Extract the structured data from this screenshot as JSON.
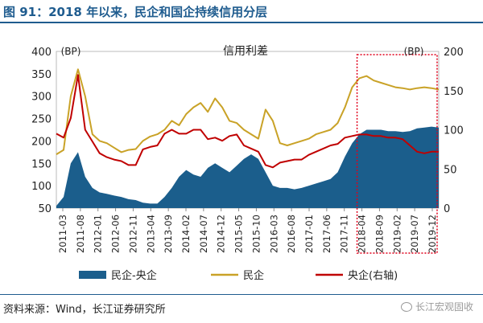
{
  "header": {
    "title": "图 91：2018 年以来，民企和国企持续信用分层"
  },
  "footer": {
    "source": "资料来源：Wind，长江证券研究所",
    "watermark": "长江宏观固收"
  },
  "chart_data": {
    "type": "area+line",
    "title": "信用利差",
    "left_axis": {
      "unit": "(BP)",
      "range": [
        50,
        400
      ],
      "ticks": [
        50,
        100,
        150,
        200,
        250,
        300,
        350,
        400
      ]
    },
    "right_axis": {
      "unit": "(BP)",
      "range": [
        0,
        200
      ],
      "ticks": [
        0,
        50,
        100,
        150,
        200
      ]
    },
    "x_tick_labels": [
      "2011-03",
      "2011-08",
      "2012-01",
      "2012-06",
      "2012-11",
      "2013-04",
      "2013-09",
      "2014-02",
      "2014-07",
      "2014-12",
      "2015-05",
      "2015-10",
      "2016-03",
      "2016-08",
      "2017-01",
      "2017-06",
      "2017-11",
      "2018-04",
      "2018-09",
      "2019-02",
      "2019-07",
      "2019-12"
    ],
    "legend": {
      "position": "bottom"
    },
    "highlight_box": {
      "from": "2018-04",
      "to": "2019-12",
      "color": "#e0001b",
      "style": "dotted"
    },
    "series": [
      {
        "name": "民企-央企",
        "type": "area",
        "axis": "left",
        "color": "#1b5e8c",
        "values": [
          55,
          75,
          150,
          175,
          120,
          95,
          85,
          82,
          78,
          75,
          70,
          68,
          62,
          60,
          60,
          75,
          95,
          120,
          135,
          125,
          120,
          140,
          150,
          140,
          130,
          145,
          160,
          170,
          160,
          130,
          100,
          95,
          95,
          92,
          95,
          100,
          105,
          110,
          115,
          130,
          165,
          195,
          215,
          225,
          225,
          225,
          222,
          222,
          220,
          222,
          228,
          230,
          232,
          230
        ]
      },
      {
        "name": "民企",
        "type": "line",
        "axis": "left",
        "color": "#c9a227",
        "values": [
          170,
          180,
          300,
          360,
          300,
          215,
          200,
          195,
          185,
          175,
          180,
          182,
          200,
          210,
          215,
          225,
          245,
          235,
          260,
          275,
          285,
          265,
          295,
          275,
          245,
          240,
          225,
          215,
          205,
          270,
          245,
          195,
          190,
          195,
          200,
          205,
          215,
          220,
          225,
          240,
          275,
          320,
          340,
          345,
          335,
          330,
          325,
          320,
          318,
          315,
          318,
          320,
          318,
          315
        ]
      },
      {
        "name": "央企(右轴)",
        "type": "line",
        "axis": "right",
        "color": "#c00000",
        "values": [
          95,
          90,
          115,
          170,
          100,
          85,
          70,
          65,
          62,
          60,
          55,
          55,
          75,
          78,
          80,
          95,
          100,
          95,
          95,
          100,
          100,
          88,
          90,
          86,
          92,
          94,
          80,
          76,
          72,
          55,
          52,
          58,
          60,
          62,
          62,
          68,
          72,
          76,
          80,
          82,
          90,
          92,
          94,
          94,
          92,
          92,
          90,
          90,
          88,
          80,
          72,
          70,
          72,
          72
        ]
      }
    ]
  }
}
